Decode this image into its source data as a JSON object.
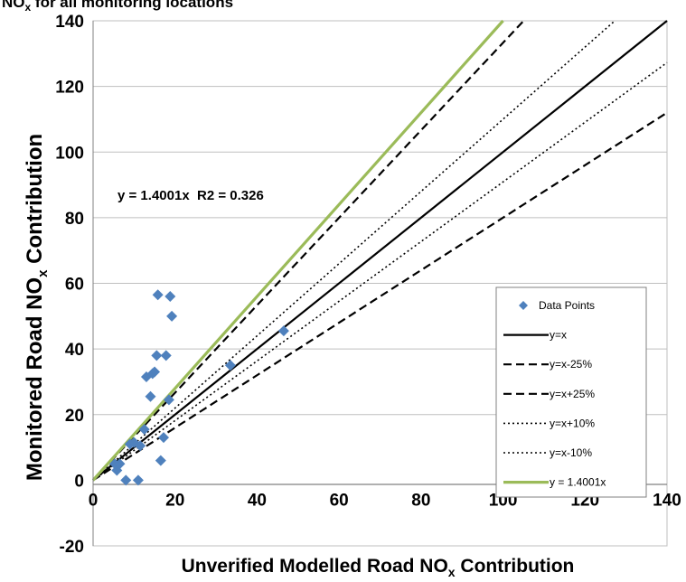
{
  "chart_data": {
    "type": "scatter",
    "title": "NOx for all monitoring locations",
    "title_parts": {
      "pre": "NO",
      "sub": "x",
      "post": " for all monitoring locations"
    },
    "xlabel": "Unverified Modelled Road NOx Contribution",
    "xlabel_parts": {
      "pre": "Unverified Modelled Road NO",
      "sub": "x",
      "post": " Contribution"
    },
    "ylabel": "Monitored Road NOx Contribution",
    "ylabel_parts": {
      "pre": "Monitored Road NO",
      "sub": "x",
      "post": " Contribution"
    },
    "xlim": [
      0,
      140
    ],
    "ylim": [
      -20,
      140
    ],
    "x_ticks": [
      0,
      20,
      40,
      60,
      80,
      100,
      120,
      140
    ],
    "y_ticks": [
      -20,
      0,
      20,
      40,
      60,
      80,
      100,
      120,
      140
    ],
    "grid": {
      "horizontal": true,
      "vertical": false
    },
    "annotation": "y = 1.4001x  R2 = 0.326",
    "legend_position": "bottom-right",
    "series": [
      {
        "name": "Data Points",
        "kind": "scatter",
        "color": "#4f81bd",
        "marker": "diamond",
        "points": [
          [
            5.3,
            5.0
          ],
          [
            5.8,
            3.0
          ],
          [
            6.5,
            5.0
          ],
          [
            8.0,
            0.0
          ],
          [
            9.0,
            11.0
          ],
          [
            10.0,
            11.5
          ],
          [
            11.0,
            0.0
          ],
          [
            11.5,
            10.5
          ],
          [
            12.5,
            15.5
          ],
          [
            13.0,
            31.5
          ],
          [
            14.0,
            25.5
          ],
          [
            14.5,
            32.5
          ],
          [
            15.0,
            33.0
          ],
          [
            15.5,
            38.0
          ],
          [
            15.8,
            56.5
          ],
          [
            16.5,
            6.0
          ],
          [
            17.2,
            13.0
          ],
          [
            17.8,
            38.0
          ],
          [
            18.5,
            24.5
          ],
          [
            18.8,
            56.0
          ],
          [
            19.2,
            50.0
          ],
          [
            33.5,
            35.0
          ],
          [
            46.5,
            45.5
          ]
        ]
      },
      {
        "name": "y=x",
        "kind": "line",
        "slope": 1.0,
        "color": "#000000",
        "dash": "none",
        "width": 2.2
      },
      {
        "name": "y=x-25%",
        "kind": "line",
        "slope": 0.8,
        "color": "#000000",
        "dash": "9,5",
        "width": 2.2
      },
      {
        "name": "y=x+25%",
        "kind": "line",
        "slope": 1.333,
        "color": "#000000",
        "dash": "9,5",
        "width": 2.2
      },
      {
        "name": "y=x+10%",
        "kind": "line",
        "slope": 1.1,
        "color": "#000000",
        "dash": "2,3",
        "width": 1.6
      },
      {
        "name": "y=x-10%",
        "kind": "line",
        "slope": 0.909,
        "color": "#000000",
        "dash": "2,3",
        "width": 1.6
      },
      {
        "name": "y = 1.4001x",
        "kind": "line",
        "slope": 1.4001,
        "color": "#9bbb59",
        "dash": "none",
        "width": 3.2
      }
    ]
  }
}
